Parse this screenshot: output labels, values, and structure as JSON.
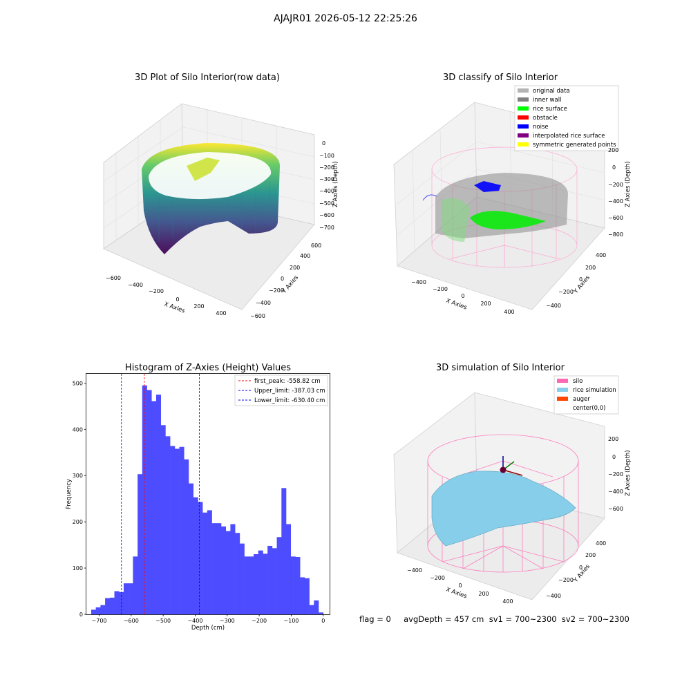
{
  "figure": {
    "suptitle": "AJAJR01 2026-05-12 22:25:26",
    "footer": "flag = 0     avgDepth = 457 cm  sv1 = 700~2300  sv2 = 700~2300"
  },
  "panels": {
    "raw": {
      "title": "3D Plot of Silo Interior(row data)",
      "xlabel": "X Axies",
      "ylabel": "Y Axies",
      "zlabel": "Z Axies (Depth)",
      "xticks": [
        "−600",
        "−400",
        "−200",
        "0",
        "200",
        "400"
      ],
      "yticks": [
        "−600",
        "−400",
        "−200",
        "0",
        "200",
        "400",
        "600"
      ],
      "zticks": [
        "0",
        "−100",
        "−200",
        "−300",
        "−400",
        "−500",
        "−600",
        "−700"
      ]
    },
    "classify": {
      "title": "3D classify of Silo Interior",
      "xlabel": "X Axies",
      "ylabel": "Y Axies",
      "zlabel": "Z Axies (Depth)",
      "xticks": [
        "−400",
        "−200",
        "0",
        "200",
        "400"
      ],
      "yticks": [
        "−400",
        "−200",
        "0",
        "200",
        "400"
      ],
      "zticks": [
        "200",
        "0",
        "−200",
        "−400",
        "−600",
        "−800"
      ],
      "legend": [
        {
          "label": "original data",
          "color": "#b3b3b3"
        },
        {
          "label": "inner wall",
          "color": "#808080"
        },
        {
          "label": "rice surface",
          "color": "#00ff00"
        },
        {
          "label": "obstacle",
          "color": "#ff0000"
        },
        {
          "label": "noise",
          "color": "#0000ff"
        },
        {
          "label": "interpolated rice surface",
          "color": "#800080"
        },
        {
          "label": "symmetric generated points",
          "color": "#ffff00"
        }
      ]
    },
    "simulation": {
      "title": "3D simulation of Silo Interior",
      "xlabel": "X Axies",
      "ylabel": "Y Axies",
      "zlabel": "Z Axies (Depth)",
      "xticks": [
        "−400",
        "−200",
        "0",
        "200",
        "400"
      ],
      "yticks": [
        "−400",
        "−200",
        "0",
        "200",
        "400"
      ],
      "zticks": [
        "200",
        "0",
        "−200",
        "−400",
        "−600"
      ],
      "legend": [
        {
          "label": "silo",
          "color": "#ff69b4"
        },
        {
          "label": "rice simulation",
          "color": "#87ceeb"
        },
        {
          "label": "auger",
          "color": "#ff4500"
        },
        {
          "label": "center(0,0)",
          "color": "#ffffff"
        }
      ]
    }
  },
  "chart_data": {
    "type": "bar",
    "title": "Histogram of Z-Axies (Height) Values",
    "xlabel": "Depth (cm)",
    "ylabel": "Frequency",
    "xlim": [
      -740,
      20
    ],
    "ylim": [
      0,
      520
    ],
    "xticks": [
      -700,
      -600,
      -500,
      -400,
      -300,
      -200,
      -100,
      0
    ],
    "xtick_labels": [
      "−700",
      "−600",
      "−500",
      "−400",
      "−300",
      "−200",
      "−100",
      "0"
    ],
    "yticks": [
      0,
      100,
      200,
      300,
      400,
      500
    ],
    "bar_color": "#4d4dff",
    "bin_start": -725,
    "bin_width": 14.5,
    "values": [
      10,
      15,
      20,
      35,
      36,
      50,
      48,
      67,
      67,
      125,
      303,
      495,
      485,
      461,
      475,
      409,
      385,
      364,
      358,
      362,
      335,
      283,
      253,
      243,
      220,
      225,
      197,
      197,
      190,
      180,
      195,
      176,
      153,
      125,
      125,
      130,
      138,
      131,
      148,
      143,
      167,
      273,
      195,
      125,
      124,
      80,
      78,
      20,
      30,
      4
    ],
    "vlines": [
      {
        "label": "first_peak: -558.82 cm",
        "x": -558.82,
        "color": "#ff0000"
      },
      {
        "label": "Upper_limit: -387.03 cm",
        "x": -387.03,
        "color": "#0000ff"
      },
      {
        "label": "Lower_limit: -630.40 cm",
        "x": -630.4,
        "color": "#0000ff"
      }
    ]
  }
}
